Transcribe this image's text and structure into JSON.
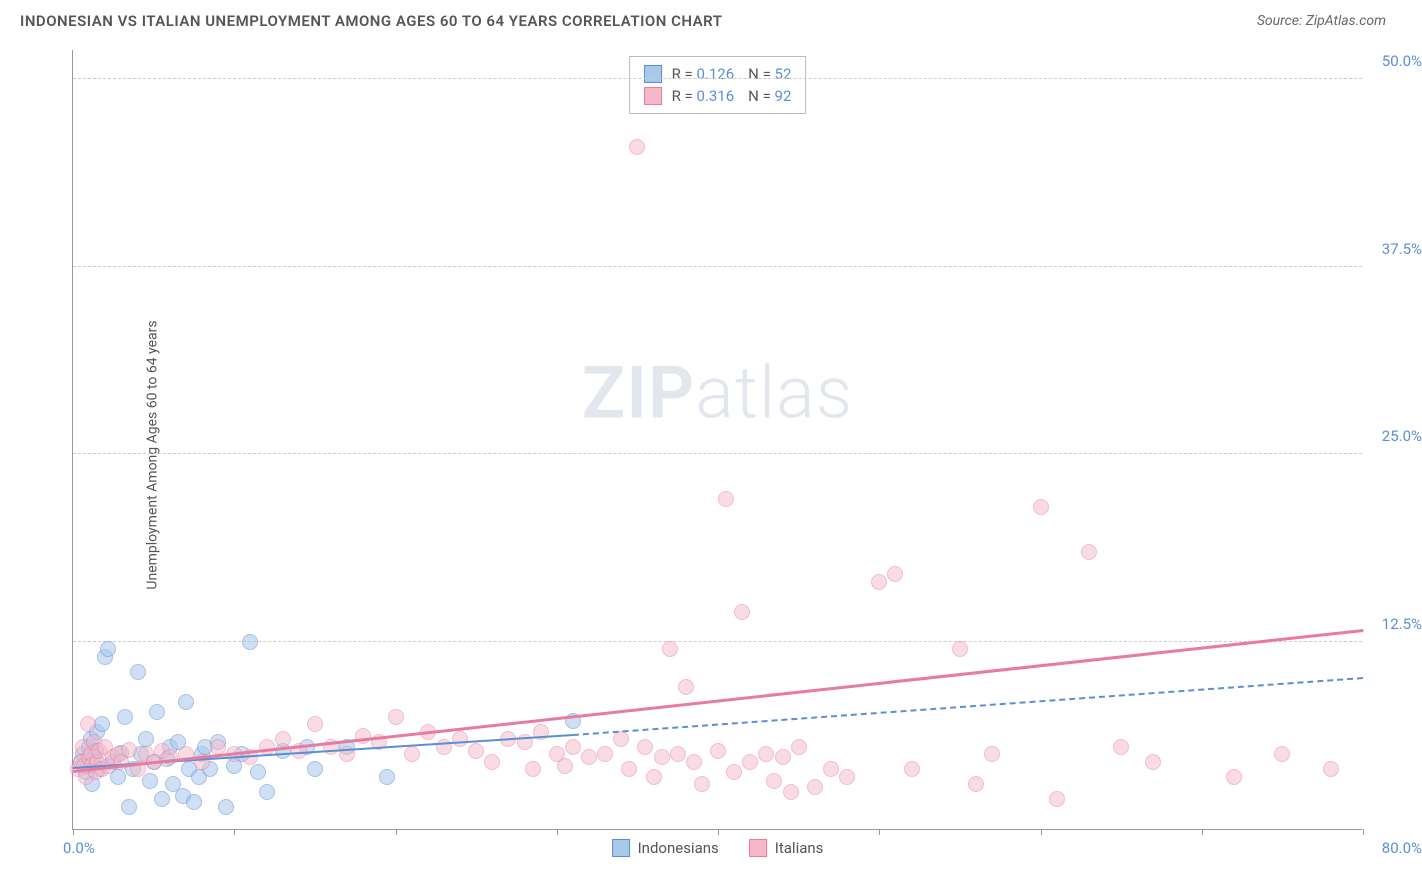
{
  "header": {
    "title": "INDONESIAN VS ITALIAN UNEMPLOYMENT AMONG AGES 60 TO 64 YEARS CORRELATION CHART",
    "source": "Source: ZipAtlas.com"
  },
  "watermark": {
    "bold": "ZIP",
    "light": "atlas"
  },
  "chart": {
    "type": "scatter",
    "background_color": "#ffffff",
    "grid_color": "#cccccc",
    "axis_color": "#999999",
    "y_label": "Unemployment Among Ages 60 to 64 years",
    "y_label_color": "#555555",
    "tick_label_color": "#5b8fd4",
    "xlim": [
      0,
      80
    ],
    "ylim": [
      0,
      52
    ],
    "x_start_label": "0.0%",
    "x_end_label": "80.0%",
    "x_ticks": [
      0,
      10,
      20,
      30,
      40,
      50,
      60,
      70,
      80
    ],
    "y_gridlines": [
      {
        "value": 12.5,
        "label": "12.5%"
      },
      {
        "value": 25.0,
        "label": "25.0%"
      },
      {
        "value": 37.5,
        "label": "37.5%"
      },
      {
        "value": 50.0,
        "label": "50.0%"
      }
    ],
    "marker_radius": 8,
    "marker_stroke_width": 1,
    "series": [
      {
        "name": "Indonesians",
        "fill_color": "#a9c8ec",
        "stroke_color": "#5b8fd4",
        "fill_opacity": 0.55,
        "R": "0.126",
        "N": "52",
        "trend": {
          "x1": 0,
          "y1": 4.0,
          "x2": 31,
          "y2": 6.2,
          "style": "solid",
          "width": 2,
          "color": "#5b8fd4"
        },
        "trend_ext": {
          "x1": 31,
          "y1": 6.2,
          "x2": 80,
          "y2": 10.0,
          "style": "dashed",
          "width": 2,
          "color": "#5b8fd4"
        },
        "points": [
          [
            0.5,
            4.5
          ],
          [
            0.6,
            5.0
          ],
          [
            0.8,
            3.8
          ],
          [
            0.9,
            4.2
          ],
          [
            1.0,
            5.5
          ],
          [
            1.1,
            6.0
          ],
          [
            1.2,
            3.0
          ],
          [
            1.3,
            4.8
          ],
          [
            1.4,
            5.2
          ],
          [
            1.5,
            6.5
          ],
          [
            1.6,
            4.0
          ],
          [
            1.8,
            7.0
          ],
          [
            2.0,
            11.5
          ],
          [
            2.2,
            12.0
          ],
          [
            2.5,
            4.5
          ],
          [
            2.8,
            3.5
          ],
          [
            3.0,
            5.1
          ],
          [
            3.2,
            7.5
          ],
          [
            3.5,
            1.5
          ],
          [
            3.7,
            4.0
          ],
          [
            4.0,
            10.5
          ],
          [
            4.2,
            5.0
          ],
          [
            4.5,
            6.0
          ],
          [
            4.8,
            3.2
          ],
          [
            5.0,
            4.5
          ],
          [
            5.2,
            7.8
          ],
          [
            5.5,
            2.0
          ],
          [
            5.8,
            4.7
          ],
          [
            6.0,
            5.5
          ],
          [
            6.2,
            3.0
          ],
          [
            6.5,
            5.8
          ],
          [
            6.8,
            2.2
          ],
          [
            7.0,
            8.5
          ],
          [
            7.2,
            4.0
          ],
          [
            7.5,
            1.8
          ],
          [
            7.8,
            3.5
          ],
          [
            8.0,
            5.0
          ],
          [
            8.2,
            5.5
          ],
          [
            8.5,
            4.0
          ],
          [
            9.0,
            5.8
          ],
          [
            9.5,
            1.5
          ],
          [
            10.0,
            4.2
          ],
          [
            10.5,
            5.0
          ],
          [
            11.0,
            12.5
          ],
          [
            11.5,
            3.8
          ],
          [
            12.0,
            2.5
          ],
          [
            13.0,
            5.2
          ],
          [
            14.5,
            5.5
          ],
          [
            15.0,
            4.0
          ],
          [
            17.0,
            5.5
          ],
          [
            19.5,
            3.5
          ],
          [
            31.0,
            7.2
          ]
        ]
      },
      {
        "name": "Italians",
        "fill_color": "#f4b8c8",
        "stroke_color": "#e77ba0",
        "fill_opacity": 0.5,
        "R": "0.316",
        "N": "92",
        "trend": {
          "x1": 0,
          "y1": 3.8,
          "x2": 80,
          "y2": 13.2,
          "style": "solid",
          "width": 2.5,
          "color": "#e77ba0"
        },
        "points": [
          [
            0.3,
            4.0
          ],
          [
            0.5,
            4.5
          ],
          [
            0.6,
            5.5
          ],
          [
            0.7,
            4.2
          ],
          [
            0.8,
            3.5
          ],
          [
            0.9,
            7.0
          ],
          [
            1.0,
            4.8
          ],
          [
            1.1,
            5.0
          ],
          [
            1.2,
            4.3
          ],
          [
            1.3,
            5.8
          ],
          [
            1.4,
            3.8
          ],
          [
            1.5,
            4.5
          ],
          [
            1.6,
            5.2
          ],
          [
            1.8,
            4.0
          ],
          [
            2.0,
            5.5
          ],
          [
            2.2,
            4.2
          ],
          [
            2.5,
            4.8
          ],
          [
            2.8,
            5.0
          ],
          [
            3.0,
            4.5
          ],
          [
            3.5,
            5.3
          ],
          [
            4.0,
            4.0
          ],
          [
            4.5,
            5.0
          ],
          [
            5.0,
            4.5
          ],
          [
            5.5,
            5.2
          ],
          [
            6.0,
            4.8
          ],
          [
            7.0,
            5.0
          ],
          [
            8.0,
            4.5
          ],
          [
            9.0,
            5.5
          ],
          [
            10.0,
            5.0
          ],
          [
            11.0,
            4.8
          ],
          [
            12.0,
            5.5
          ],
          [
            13.0,
            6.0
          ],
          [
            14.0,
            5.2
          ],
          [
            15.0,
            7.0
          ],
          [
            16.0,
            5.5
          ],
          [
            17.0,
            5.0
          ],
          [
            18.0,
            6.2
          ],
          [
            19.0,
            5.8
          ],
          [
            20.0,
            7.5
          ],
          [
            21.0,
            5.0
          ],
          [
            22.0,
            6.5
          ],
          [
            23.0,
            5.5
          ],
          [
            24.0,
            6.0
          ],
          [
            25.0,
            5.2
          ],
          [
            26.0,
            4.5
          ],
          [
            27.0,
            6.0
          ],
          [
            28.0,
            5.8
          ],
          [
            28.5,
            4.0
          ],
          [
            29.0,
            6.5
          ],
          [
            30.0,
            5.0
          ],
          [
            30.5,
            4.2
          ],
          [
            31.0,
            5.5
          ],
          [
            32.0,
            4.8
          ],
          [
            33.0,
            5.0
          ],
          [
            34.0,
            6.0
          ],
          [
            34.5,
            4.0
          ],
          [
            35.0,
            45.5
          ],
          [
            35.5,
            5.5
          ],
          [
            36.0,
            3.5
          ],
          [
            36.5,
            4.8
          ],
          [
            37.0,
            12.0
          ],
          [
            37.5,
            5.0
          ],
          [
            38.0,
            9.5
          ],
          [
            38.5,
            4.5
          ],
          [
            39.0,
            3.0
          ],
          [
            40.0,
            5.2
          ],
          [
            40.5,
            22.0
          ],
          [
            41.0,
            3.8
          ],
          [
            41.5,
            14.5
          ],
          [
            42.0,
            4.5
          ],
          [
            43.0,
            5.0
          ],
          [
            43.5,
            3.2
          ],
          [
            44.0,
            4.8
          ],
          [
            44.5,
            2.5
          ],
          [
            45.0,
            5.5
          ],
          [
            46.0,
            2.8
          ],
          [
            47.0,
            4.0
          ],
          [
            48.0,
            3.5
          ],
          [
            50.0,
            16.5
          ],
          [
            51.0,
            17.0
          ],
          [
            52.0,
            4.0
          ],
          [
            55.0,
            12.0
          ],
          [
            56.0,
            3.0
          ],
          [
            57.0,
            5.0
          ],
          [
            60.0,
            21.5
          ],
          [
            61.0,
            2.0
          ],
          [
            63.0,
            18.5
          ],
          [
            65.0,
            5.5
          ],
          [
            67.0,
            4.5
          ],
          [
            72.0,
            3.5
          ],
          [
            75.0,
            5.0
          ],
          [
            78.0,
            4.0
          ]
        ]
      }
    ],
    "legend": {
      "r_label": "R =",
      "n_label": "N ="
    },
    "bottom_legend": [
      {
        "label": "Indonesians",
        "fill": "#a9c8ec",
        "stroke": "#5b8fd4"
      },
      {
        "label": "Italians",
        "fill": "#f4b8c8",
        "stroke": "#e77ba0"
      }
    ]
  }
}
